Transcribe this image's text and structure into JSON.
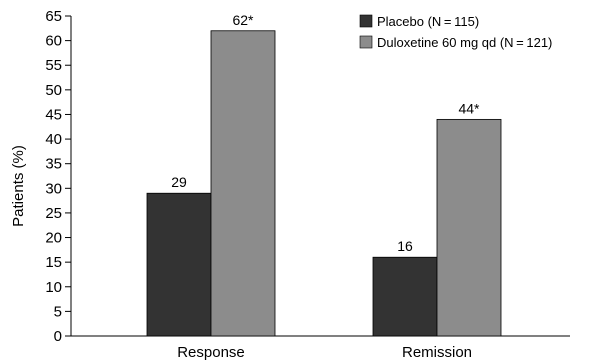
{
  "chart_data": {
    "type": "bar",
    "categories": [
      "Response",
      "Remission"
    ],
    "series": [
      {
        "name": "Placebo (N = 115)",
        "values": [
          29,
          16
        ],
        "labels": [
          "29",
          "16"
        ],
        "color": "#333333"
      },
      {
        "name": "Duloxetine 60 mg qd (N = 121)",
        "values": [
          62,
          44
        ],
        "labels": [
          "62*",
          "44*"
        ],
        "color": "#8c8c8c"
      }
    ],
    "ylabel": "Patients (%)",
    "ylim": [
      0,
      65
    ],
    "yticks": [
      0,
      5,
      10,
      15,
      20,
      25,
      30,
      35,
      40,
      45,
      50,
      55,
      60,
      65
    ],
    "grid": false,
    "legend_position": "top-right"
  }
}
